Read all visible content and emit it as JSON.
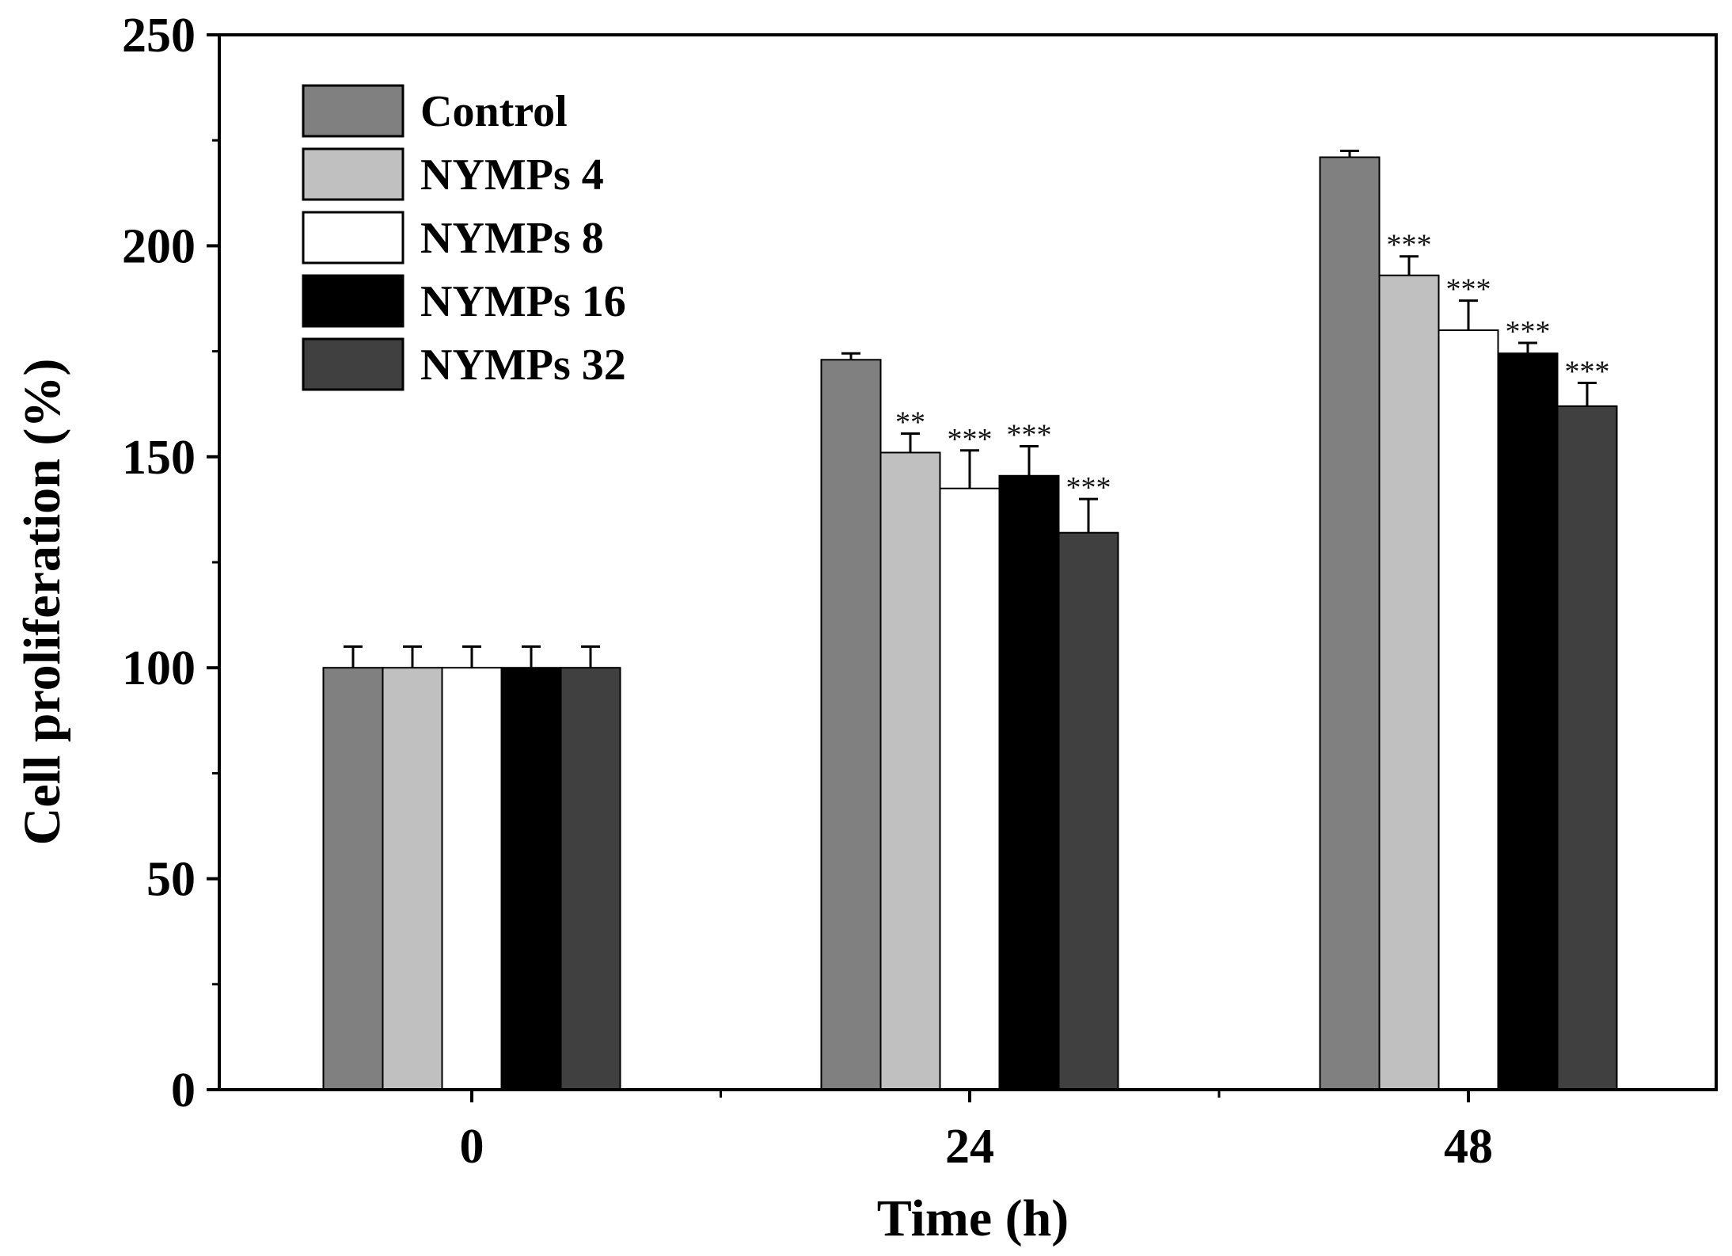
{
  "chart_data": {
    "type": "bar",
    "title": "",
    "xlabel": "Time (h)",
    "ylabel": "Cell proliferation (%)",
    "categories": [
      "0",
      "24",
      "48"
    ],
    "ylim": [
      0,
      250
    ],
    "yticks": [
      0,
      50,
      100,
      150,
      200,
      250
    ],
    "grid": false,
    "legend_position": "top-left",
    "series": [
      {
        "name": "Control",
        "color": "#808080",
        "values": [
          100,
          173,
          221
        ],
        "errors": [
          5,
          1.5,
          1.5
        ],
        "significance": [
          "",
          "",
          ""
        ]
      },
      {
        "name": "NYMPs 4",
        "color": "#c0c0c0",
        "values": [
          100,
          151,
          193
        ],
        "errors": [
          5,
          4.5,
          4.5
        ],
        "significance": [
          "",
          "**",
          "***"
        ]
      },
      {
        "name": "NYMPs 8",
        "color": "#ffffff",
        "values": [
          100,
          142.5,
          180
        ],
        "errors": [
          5,
          9,
          7
        ],
        "significance": [
          "",
          "***",
          "***"
        ]
      },
      {
        "name": "NYMPs 16",
        "color": "#000000",
        "values": [
          100,
          145.5,
          174.5
        ],
        "errors": [
          5,
          7,
          2.5
        ],
        "significance": [
          "",
          "***",
          "***"
        ]
      },
      {
        "name": "NYMPs 32",
        "color": "#404040",
        "values": [
          100,
          132,
          162
        ],
        "errors": [
          5,
          8,
          5.5
        ],
        "significance": [
          "",
          "***",
          "***"
        ]
      }
    ]
  }
}
